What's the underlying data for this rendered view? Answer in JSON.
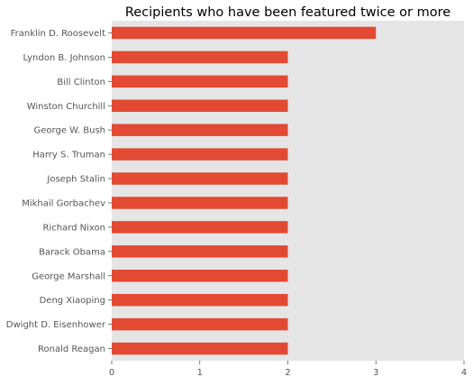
{
  "chart_data": {
    "type": "bar",
    "orientation": "horizontal",
    "title": "Recipients who have been featured twice or more",
    "xlabel": "",
    "ylabel": "",
    "categories": [
      "Franklin D. Roosevelt",
      "Lyndon B. Johnson",
      "Bill Clinton",
      "Winston Churchill",
      "George W. Bush",
      "Harry S. Truman",
      "Joseph Stalin",
      "Mikhail Gorbachev",
      "Richard Nixon",
      "Barack Obama",
      "George Marshall",
      "Deng Xiaoping",
      "Dwight D. Eisenhower",
      "Ronald Reagan"
    ],
    "values": [
      3,
      2,
      2,
      2,
      2,
      2,
      2,
      2,
      2,
      2,
      2,
      2,
      2,
      2
    ],
    "xlim": [
      0,
      4
    ],
    "xticks": [
      "0",
      "1",
      "2",
      "3",
      "4"
    ],
    "grid": false,
    "colors": {
      "bar": "#e24a33",
      "plot_background": "#e5e5e5",
      "tick_label": "#555555"
    }
  }
}
